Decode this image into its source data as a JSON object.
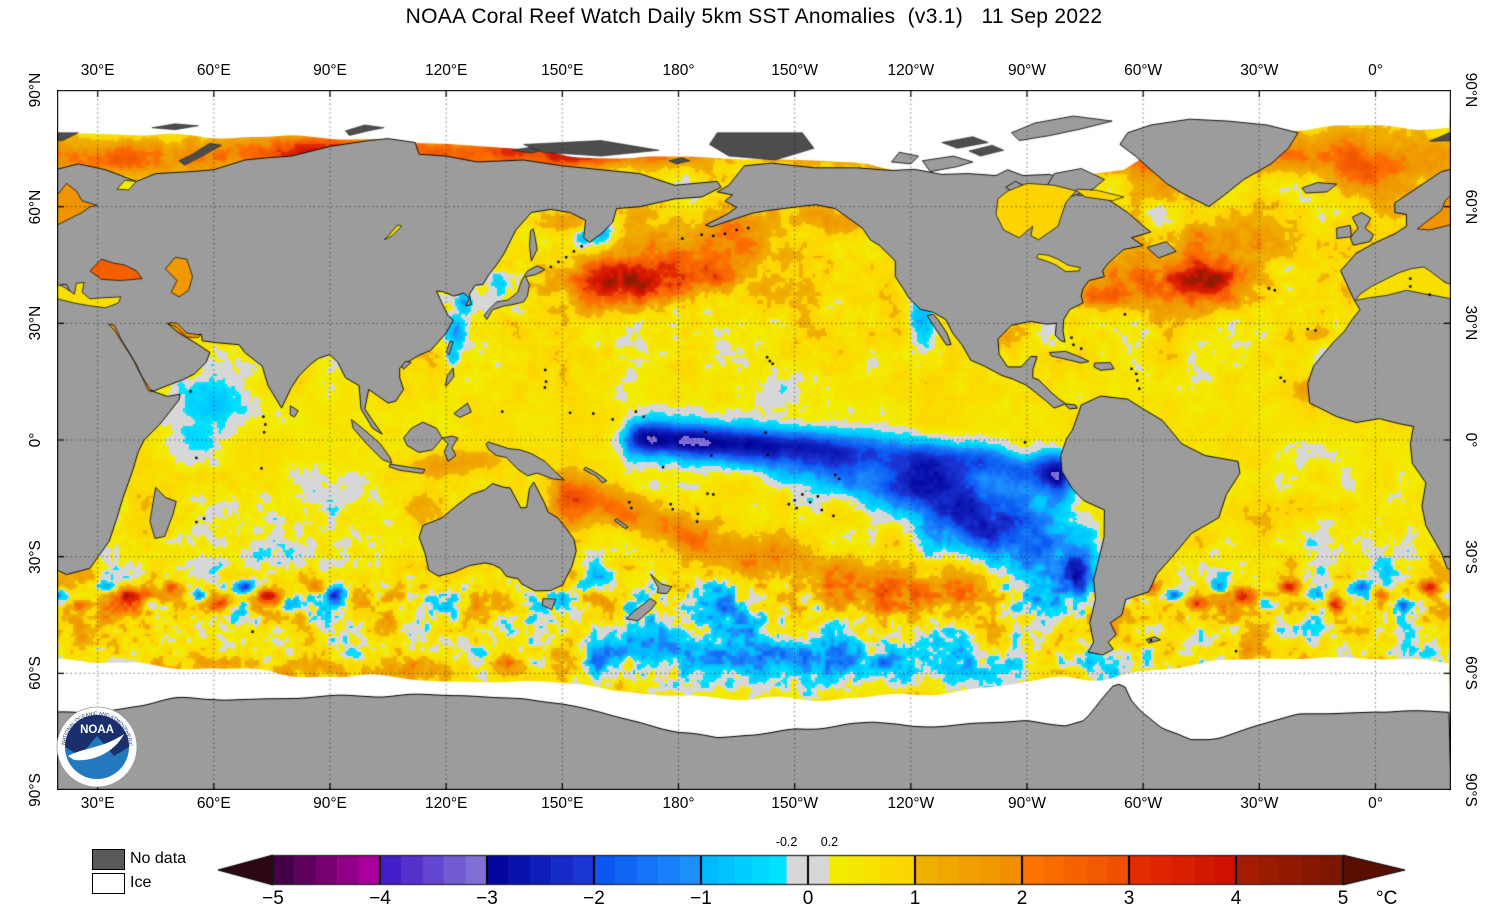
{
  "title": "NOAA Coral Reef Watch Daily 5km SST Anomalies  (v3.1)   11 Sep 2022",
  "axes": {
    "lon_ticks": [
      {
        "lon": 30,
        "label": "30°E"
      },
      {
        "lon": 60,
        "label": "60°E"
      },
      {
        "lon": 90,
        "label": "90°E"
      },
      {
        "lon": 120,
        "label": "120°E"
      },
      {
        "lon": 150,
        "label": "150°E"
      },
      {
        "lon": 180,
        "label": "180°"
      },
      {
        "lon": 210,
        "label": "150°W"
      },
      {
        "lon": 240,
        "label": "120°W"
      },
      {
        "lon": 270,
        "label": "90°W"
      },
      {
        "lon": 300,
        "label": "60°W"
      },
      {
        "lon": 330,
        "label": "30°W"
      },
      {
        "lon": 360,
        "label": "0°"
      }
    ],
    "lat_ticks": [
      {
        "lat": 90,
        "label": "90°N"
      },
      {
        "lat": 60,
        "label": "60°N"
      },
      {
        "lat": 30,
        "label": "30°N"
      },
      {
        "lat": 0,
        "label": "0°"
      },
      {
        "lat": -30,
        "label": "30°S"
      },
      {
        "lat": -60,
        "label": "60°S"
      },
      {
        "lat": -90,
        "label": "90°S"
      }
    ]
  },
  "legend": {
    "items": [
      {
        "label": "No data",
        "color": "#595959"
      },
      {
        "label": "Ice",
        "color": "#ffffff"
      }
    ]
  },
  "colorbar": {
    "unit": "°C",
    "min": -5,
    "max": 5,
    "tick_labels": [
      "−5",
      "−4",
      "−3",
      "−2",
      "−1",
      "0",
      "1",
      "2",
      "3",
      "4",
      "5"
    ],
    "tick_values": [
      -5,
      -4,
      -3,
      -2,
      -1,
      0,
      1,
      2,
      3,
      4,
      5
    ],
    "inner_ticks": [
      {
        "label": "-0.2",
        "value": -0.2
      },
      {
        "label": "0.2",
        "value": 0.2
      }
    ],
    "under_color": "#2d0716",
    "over_color": "#5a0e00",
    "segments": [
      {
        "from": -5,
        "to": -4,
        "c0": "#3a003e",
        "c1": "#b400a6"
      },
      {
        "from": -4,
        "to": -3,
        "c0": "#3c14c8",
        "c1": "#8a7ad8"
      },
      {
        "from": -3,
        "to": -2,
        "c0": "#000096",
        "c1": "#1e3cdc"
      },
      {
        "from": -2,
        "to": -1,
        "c0": "#0a50f0",
        "c1": "#1e96ff"
      },
      {
        "from": -1,
        "to": -0.2,
        "c0": "#00b4ff",
        "c1": "#00e6ff"
      },
      {
        "from": -0.2,
        "to": 0.2,
        "c0": "#d7d7d7",
        "c1": "#d7d7d7"
      },
      {
        "from": 0.2,
        "to": 1,
        "c0": "#f0f000",
        "c1": "#ffd200"
      },
      {
        "from": 1,
        "to": 2,
        "c0": "#f0b400",
        "c1": "#f08c00"
      },
      {
        "from": 2,
        "to": 3,
        "c0": "#ff7800",
        "c1": "#ee4c00"
      },
      {
        "from": 3,
        "to": 4,
        "c0": "#e63000",
        "c1": "#cc0e00"
      },
      {
        "from": 4,
        "to": 5,
        "c0": "#aa1e00",
        "c1": "#7a1400"
      }
    ]
  },
  "map_colors": {
    "land": "#9c9c9c",
    "no_data": "#4d4d4d",
    "ice": "#ffffff",
    "coast": "#000000",
    "grid": "#222222"
  },
  "logo": {
    "acronym": "NOAA",
    "ring_top": "NATIONAL OCEANIC AND ATMOSPHERIC ADMINISTRATION",
    "ring_bottom": "U.S. DEPARTMENT OF COMMERCE"
  }
}
